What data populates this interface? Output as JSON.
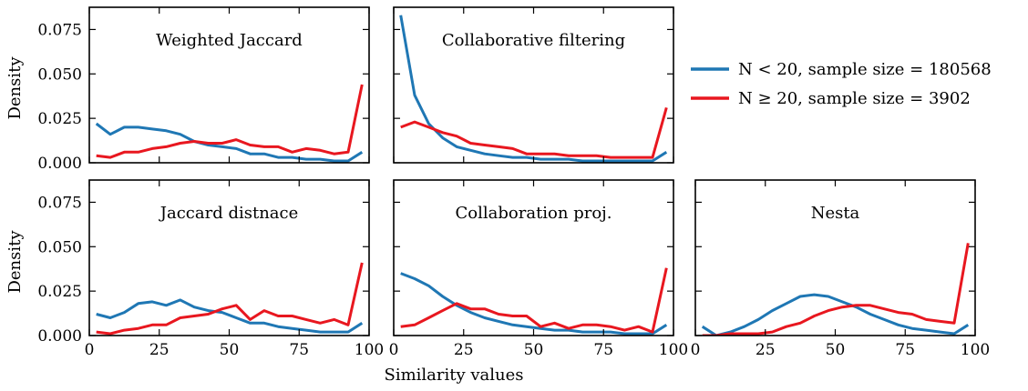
{
  "figure": {
    "ylabel": "Density",
    "xlabel": "Similarity values"
  },
  "legend": {
    "items": [
      {
        "label": "N < 20, sample size = 180568",
        "color": "#1f77b4"
      },
      {
        "label": "N ≥ 20, sample size = 3902",
        "color": "#e8171f"
      }
    ]
  },
  "chart_data": [
    {
      "type": "line",
      "title": "Weighted Jaccard",
      "xlim": [
        0,
        100
      ],
      "ylim": [
        0,
        0.0875
      ],
      "xticks": [
        0,
        25,
        50,
        75,
        100
      ],
      "yticks": [
        0.0,
        0.025,
        0.05,
        0.075
      ],
      "x": [
        2.5,
        7.5,
        12.5,
        17.5,
        22.5,
        27.5,
        32.5,
        37.5,
        42.5,
        47.5,
        52.5,
        57.5,
        62.5,
        67.5,
        72.5,
        77.5,
        82.5,
        87.5,
        92.5,
        97.5
      ],
      "series": [
        {
          "name": "N < 20, sample size = 180568",
          "color": "#1f77b4",
          "values": [
            0.022,
            0.016,
            0.02,
            0.02,
            0.019,
            0.018,
            0.016,
            0.012,
            0.01,
            0.009,
            0.008,
            0.005,
            0.005,
            0.003,
            0.003,
            0.002,
            0.002,
            0.001,
            0.001,
            0.006
          ]
        },
        {
          "name": "N ≥ 20, sample size = 3902",
          "color": "#e8171f",
          "values": [
            0.004,
            0.003,
            0.006,
            0.006,
            0.008,
            0.009,
            0.011,
            0.012,
            0.011,
            0.011,
            0.013,
            0.01,
            0.009,
            0.009,
            0.006,
            0.008,
            0.007,
            0.005,
            0.006,
            0.044
          ]
        }
      ]
    },
    {
      "type": "line",
      "title": "Collaborative filtering",
      "xlim": [
        0,
        100
      ],
      "ylim": [
        0,
        0.0875
      ],
      "xticks": [
        0,
        25,
        50,
        75,
        100
      ],
      "yticks": [
        0.0,
        0.025,
        0.05,
        0.075
      ],
      "x": [
        2.5,
        7.5,
        12.5,
        17.5,
        22.5,
        27.5,
        32.5,
        37.5,
        42.5,
        47.5,
        52.5,
        57.5,
        62.5,
        67.5,
        72.5,
        77.5,
        82.5,
        87.5,
        92.5,
        97.5
      ],
      "series": [
        {
          "name": "N < 20, sample size = 180568",
          "color": "#1f77b4",
          "values": [
            0.083,
            0.038,
            0.022,
            0.014,
            0.009,
            0.007,
            0.005,
            0.004,
            0.003,
            0.003,
            0.002,
            0.002,
            0.002,
            0.001,
            0.001,
            0.001,
            0.001,
            0.001,
            0.001,
            0.006
          ]
        },
        {
          "name": "N ≥ 20, sample size = 3902",
          "color": "#e8171f",
          "values": [
            0.02,
            0.023,
            0.02,
            0.017,
            0.015,
            0.011,
            0.01,
            0.009,
            0.008,
            0.005,
            0.005,
            0.005,
            0.004,
            0.004,
            0.004,
            0.003,
            0.003,
            0.003,
            0.003,
            0.031
          ]
        }
      ]
    },
    {
      "type": "line",
      "title": "Jaccard distnace",
      "xlim": [
        0,
        100
      ],
      "ylim": [
        0,
        0.0875
      ],
      "xticks": [
        0,
        25,
        50,
        75,
        100
      ],
      "yticks": [
        0.0,
        0.025,
        0.05,
        0.075
      ],
      "x": [
        2.5,
        7.5,
        12.5,
        17.5,
        22.5,
        27.5,
        32.5,
        37.5,
        42.5,
        47.5,
        52.5,
        57.5,
        62.5,
        67.5,
        72.5,
        77.5,
        82.5,
        87.5,
        92.5,
        97.5
      ],
      "series": [
        {
          "name": "N < 20, sample size = 180568",
          "color": "#1f77b4",
          "values": [
            0.012,
            0.01,
            0.013,
            0.018,
            0.019,
            0.017,
            0.02,
            0.016,
            0.014,
            0.013,
            0.01,
            0.007,
            0.007,
            0.005,
            0.004,
            0.003,
            0.002,
            0.002,
            0.002,
            0.007
          ]
        },
        {
          "name": "N ≥ 20, sample size = 3902",
          "color": "#e8171f",
          "values": [
            0.002,
            0.001,
            0.003,
            0.004,
            0.006,
            0.006,
            0.01,
            0.011,
            0.012,
            0.015,
            0.017,
            0.009,
            0.014,
            0.011,
            0.011,
            0.009,
            0.007,
            0.009,
            0.006,
            0.041
          ]
        }
      ]
    },
    {
      "type": "line",
      "title": "Collaboration proj.",
      "xlim": [
        0,
        100
      ],
      "ylim": [
        0,
        0.0875
      ],
      "xticks": [
        0,
        25,
        50,
        75,
        100
      ],
      "yticks": [
        0.0,
        0.025,
        0.05,
        0.075
      ],
      "x": [
        2.5,
        7.5,
        12.5,
        17.5,
        22.5,
        27.5,
        32.5,
        37.5,
        42.5,
        47.5,
        52.5,
        57.5,
        62.5,
        67.5,
        72.5,
        77.5,
        82.5,
        87.5,
        92.5,
        97.5
      ],
      "series": [
        {
          "name": "N < 20, sample size = 180568",
          "color": "#1f77b4",
          "values": [
            0.035,
            0.032,
            0.028,
            0.022,
            0.017,
            0.013,
            0.01,
            0.008,
            0.006,
            0.005,
            0.004,
            0.003,
            0.003,
            0.002,
            0.002,
            0.002,
            0.001,
            0.001,
            0.001,
            0.006
          ]
        },
        {
          "name": "N ≥ 20, sample size = 3902",
          "color": "#e8171f",
          "values": [
            0.005,
            0.006,
            0.01,
            0.014,
            0.018,
            0.015,
            0.015,
            0.012,
            0.011,
            0.011,
            0.005,
            0.007,
            0.004,
            0.006,
            0.006,
            0.005,
            0.003,
            0.005,
            0.002,
            0.038
          ]
        }
      ]
    },
    {
      "type": "line",
      "title": "Nesta",
      "xlim": [
        0,
        100
      ],
      "ylim": [
        0,
        0.0875
      ],
      "xticks": [
        0,
        25,
        50,
        75,
        100
      ],
      "yticks": [
        0.0,
        0.025,
        0.05,
        0.075
      ],
      "x": [
        2.5,
        7.5,
        12.5,
        17.5,
        22.5,
        27.5,
        32.5,
        37.5,
        42.5,
        47.5,
        52.5,
        57.5,
        62.5,
        67.5,
        72.5,
        77.5,
        82.5,
        87.5,
        92.5,
        97.5
      ],
      "series": [
        {
          "name": "N < 20, sample size = 180568",
          "color": "#1f77b4",
          "values": [
            0.005,
            0.0,
            0.002,
            0.005,
            0.009,
            0.014,
            0.018,
            0.022,
            0.023,
            0.022,
            0.019,
            0.016,
            0.012,
            0.009,
            0.006,
            0.004,
            0.003,
            0.002,
            0.001,
            0.006
          ]
        },
        {
          "name": "N ≥ 20, sample size = 3902",
          "color": "#e8171f",
          "values": [
            0.0,
            0.0,
            0.001,
            0.001,
            0.001,
            0.002,
            0.005,
            0.007,
            0.011,
            0.014,
            0.016,
            0.017,
            0.017,
            0.015,
            0.013,
            0.012,
            0.009,
            0.008,
            0.007,
            0.052
          ]
        }
      ]
    }
  ]
}
